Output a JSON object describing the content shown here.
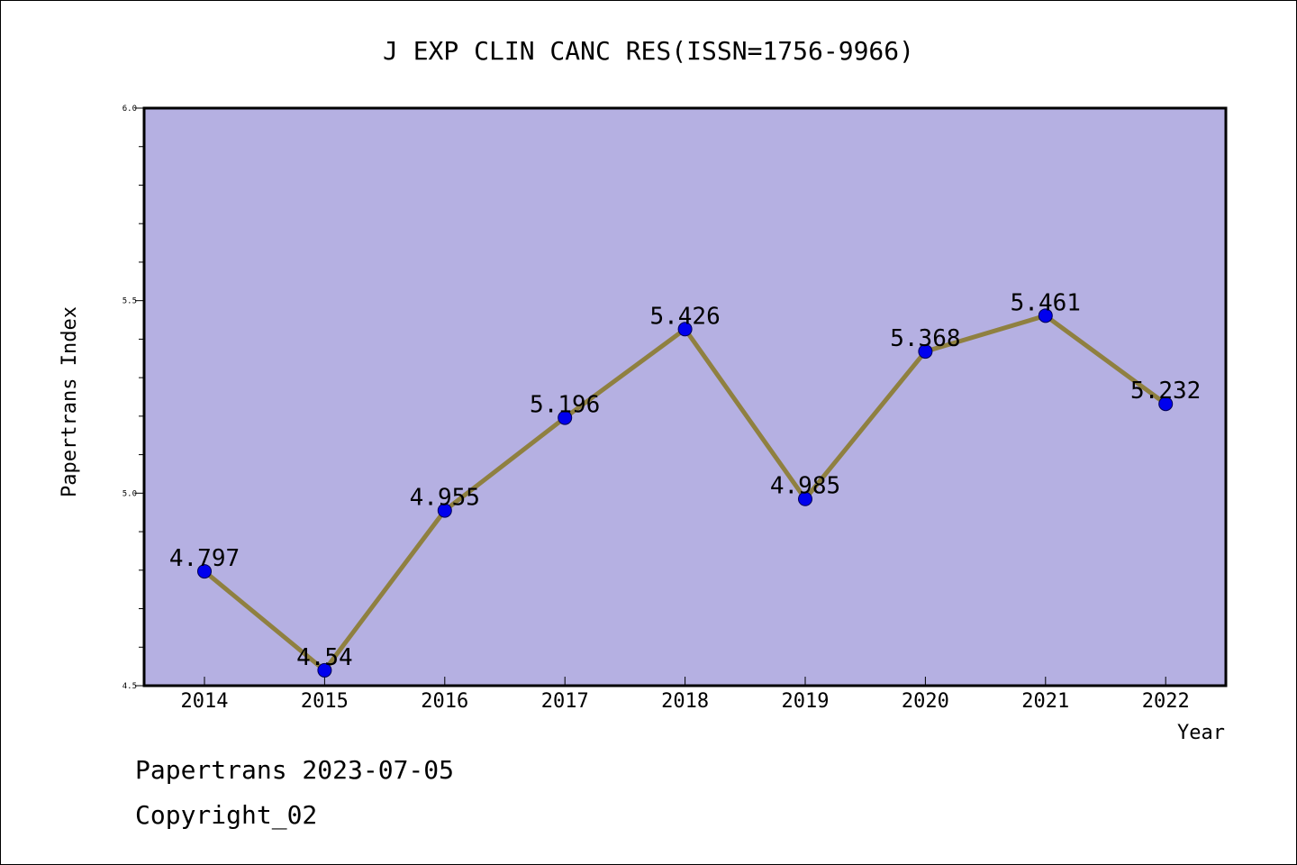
{
  "chart_data": {
    "type": "line",
    "title": "J EXP CLIN CANC RES(ISSN=1756-9966)",
    "xlabel": "Year",
    "ylabel": "Papertrans Index",
    "x": [
      "2014",
      "2015",
      "2016",
      "2017",
      "2018",
      "2019",
      "2020",
      "2021",
      "2022"
    ],
    "values": [
      4.797,
      4.54,
      4.955,
      5.196,
      5.426,
      4.985,
      5.368,
      5.461,
      5.232
    ],
    "data_labels": [
      "4.797",
      "4.54",
      "4.955",
      "5.196",
      "5.426",
      "4.985",
      "5.368",
      "5.461",
      "5.232"
    ],
    "ylim": [
      4.5,
      6.0
    ],
    "yticks": [
      "4.5",
      "5.0",
      "5.5",
      "6.0"
    ],
    "grid": false,
    "colors": {
      "plot_background": "#b5b0e2",
      "line": "#8f8040",
      "marker": "#0000ee"
    }
  },
  "footer": {
    "date_line": "Papertrans 2023-07-05",
    "copyright": "Copyright_02"
  }
}
